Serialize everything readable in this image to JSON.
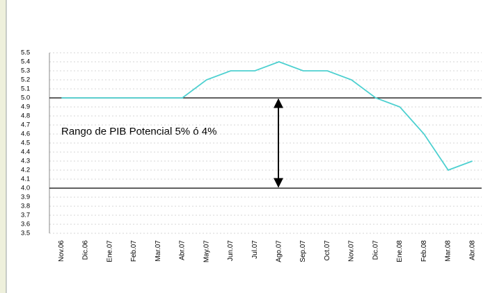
{
  "chart_data": {
    "type": "line",
    "categories": [
      "Nov.06",
      "Dic.06",
      "Ene.07",
      "Feb.07",
      "Mar.07",
      "Abr.07",
      "May.07",
      "Jun.07",
      "Jul.07",
      "Ago.07",
      "Sep.07",
      "Oct.07",
      "Nov.07",
      "Dic.07",
      "Ene.08",
      "Feb.08",
      "Mar.08",
      "Abr.08"
    ],
    "values": [
      5.0,
      5.0,
      5.0,
      5.0,
      5.0,
      5.0,
      5.2,
      5.3,
      5.3,
      5.4,
      5.3,
      5.3,
      5.2,
      5.0,
      4.9,
      4.6,
      4.2,
      4.3
    ],
    "color": "#4dd0d0",
    "ylim": [
      3.5,
      5.5
    ],
    "yticks": [
      3.5,
      3.6,
      3.7,
      3.8,
      3.9,
      {
        "value": 4,
        "label": "4.0"
      },
      4.1,
      4.2,
      4.3,
      4.4,
      4.5,
      4.6,
      4.7,
      4.8,
      4.9,
      {
        "value": 5,
        "label": "5.0"
      },
      5.1,
      5.2,
      5.3,
      5.4,
      5.5
    ],
    "grid": true,
    "reference_lines": [
      5,
      4
    ],
    "annotation": "Rango de PIB Potencial 5% ó 4%"
  }
}
